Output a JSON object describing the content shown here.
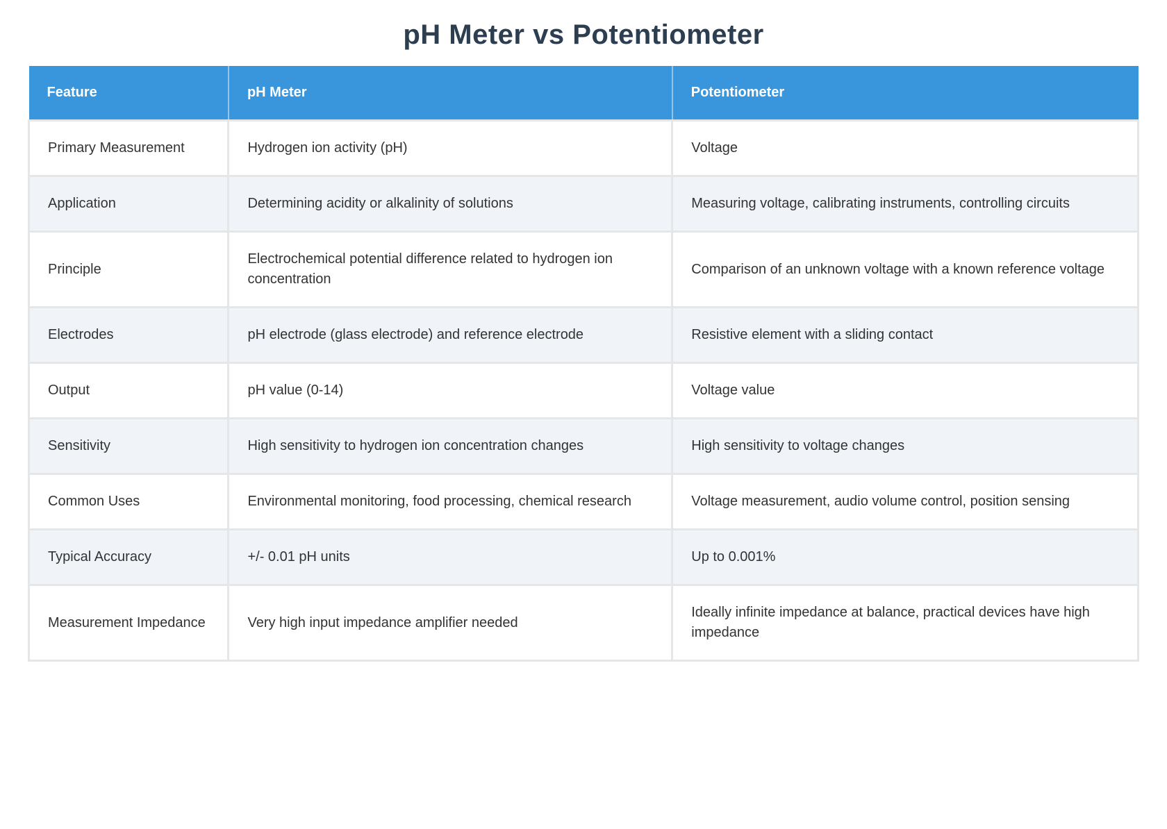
{
  "page": {
    "title": "pH Meter vs Potentiometer"
  },
  "table": {
    "columns": [
      "Feature",
      "pH Meter",
      "Potentiometer"
    ],
    "rows": [
      {
        "feature": "Primary Measurement",
        "ph_meter": "Hydrogen ion activity (pH)",
        "potentiometer": "Voltage"
      },
      {
        "feature": "Application",
        "ph_meter": "Determining acidity or alkalinity of solutions",
        "potentiometer": "Measuring voltage, calibrating instruments, controlling circuits"
      },
      {
        "feature": "Principle",
        "ph_meter": "Electrochemical potential difference related to hydrogen ion concentration",
        "potentiometer": "Comparison of an unknown voltage with a known reference voltage"
      },
      {
        "feature": "Electrodes",
        "ph_meter": "pH electrode (glass electrode) and reference electrode",
        "potentiometer": "Resistive element with a sliding contact"
      },
      {
        "feature": "Output",
        "ph_meter": "pH value (0-14)",
        "potentiometer": "Voltage value"
      },
      {
        "feature": "Sensitivity",
        "ph_meter": "High sensitivity to hydrogen ion concentration changes",
        "potentiometer": "High sensitivity to voltage changes"
      },
      {
        "feature": "Common Uses",
        "ph_meter": "Environmental monitoring, food processing, chemical research",
        "potentiometer": "Voltage measurement, audio volume control, position sensing"
      },
      {
        "feature": "Typical Accuracy",
        "ph_meter": "+/- 0.01 pH units",
        "potentiometer": "Up to 0.001%"
      },
      {
        "feature": "Measurement Impedance",
        "ph_meter": "Very high input impedance amplifier needed",
        "potentiometer": "Ideally infinite impedance at balance, practical devices have high impedance"
      }
    ]
  },
  "colors": {
    "header_bg": "#3996dc",
    "header_text": "#ffffff",
    "zebra_bg": "#f0f4f9",
    "row_bg": "#ffffff",
    "grid_line": "#e4e6e8",
    "title_text": "#2c3e50",
    "body_text": "#333333"
  }
}
